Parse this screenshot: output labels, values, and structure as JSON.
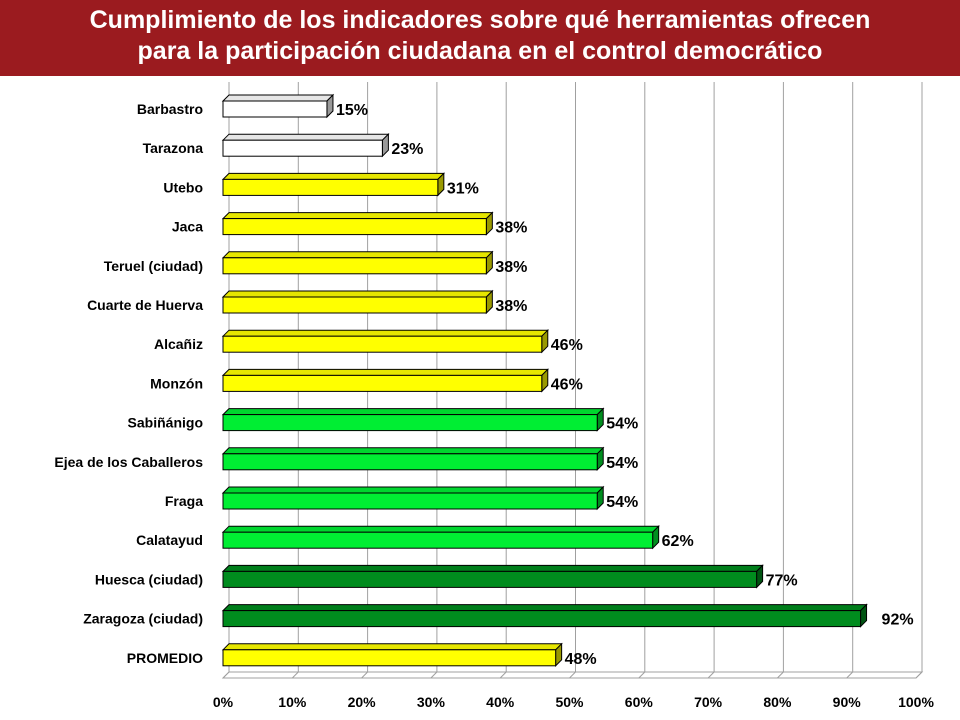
{
  "header": {
    "title_line1": "Cumplimiento de los indicadores sobre qué herramientas ofrecen",
    "title_line2": "para la participación ciudadana en el control democrático"
  },
  "chart_data": {
    "type": "bar",
    "orientation": "horizontal",
    "title": "Cumplimiento de los indicadores sobre qué herramientas ofrecen para la participación ciudadana en el control democrático",
    "xlabel": "",
    "ylabel": "",
    "xlim": [
      0,
      100
    ],
    "x_ticks": [
      "0%",
      "10%",
      "20%",
      "30%",
      "40%",
      "50%",
      "60%",
      "70%",
      "80%",
      "90%",
      "100%"
    ],
    "grid": true,
    "legend": "none",
    "colors": {
      "white": "#ffffff",
      "yellow": "#ffff00",
      "light_green": "#00ee33",
      "dark_green": "#008c1e"
    },
    "categories": [
      "Barbastro",
      "Tarazona",
      "Utebo",
      "Jaca",
      "Teruel (ciudad)",
      "Cuarte de Huerva",
      "Alcañiz",
      "Monzón",
      "Sabiñánigo",
      "Ejea de los Caballeros",
      "Fraga",
      "Calatayud",
      "Huesca (ciudad)",
      "Zaragoza (ciudad)",
      "PROMEDIO"
    ],
    "values": [
      15,
      23,
      31,
      38,
      38,
      38,
      46,
      46,
      54,
      54,
      54,
      62,
      77,
      92,
      48
    ],
    "value_labels": [
      "15%",
      "23%",
      "31%",
      "38%",
      "38%",
      "38%",
      "46%",
      "46%",
      "54%",
      "54%",
      "54%",
      "62%",
      "77%",
      "92%",
      "48%"
    ],
    "bar_colors": [
      "white",
      "white",
      "yellow",
      "yellow",
      "yellow",
      "yellow",
      "yellow",
      "yellow",
      "light_green",
      "light_green",
      "light_green",
      "light_green",
      "dark_green",
      "dark_green",
      "yellow"
    ]
  }
}
